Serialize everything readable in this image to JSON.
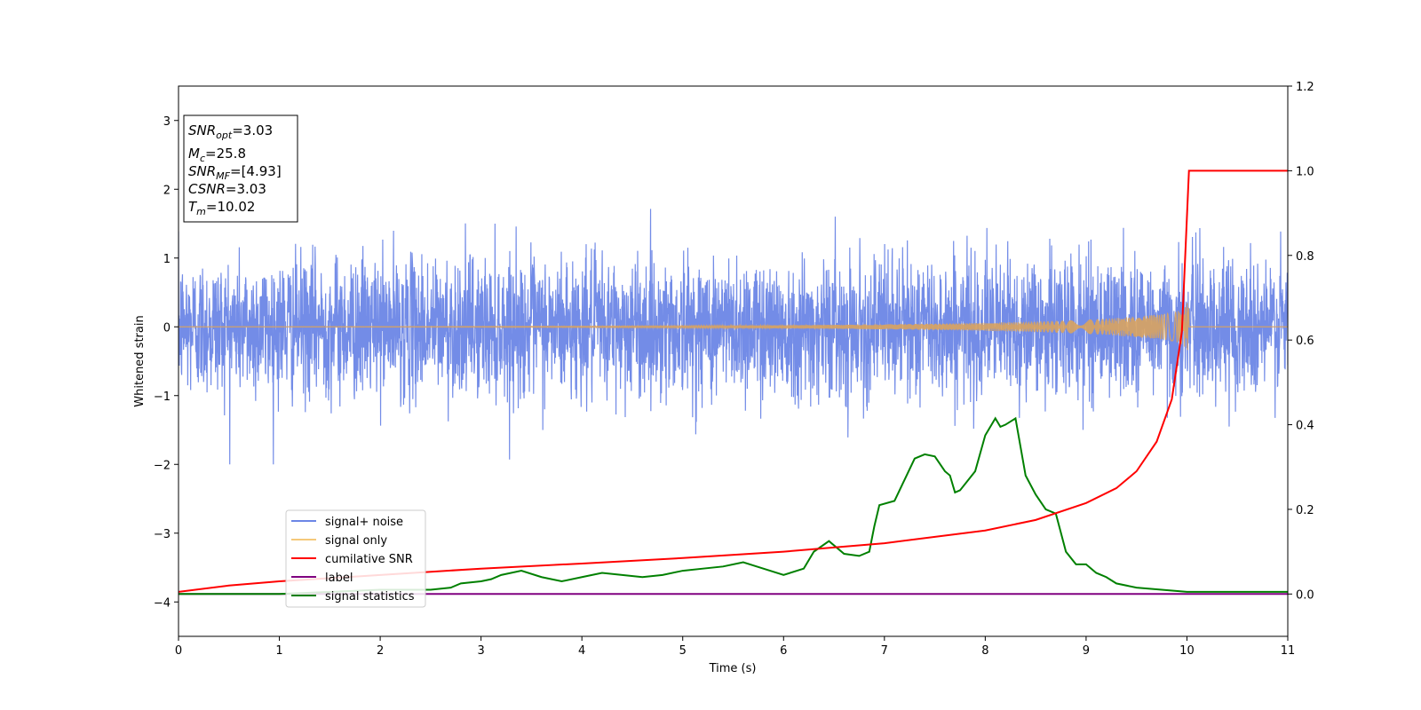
{
  "chart_data": {
    "type": "line",
    "xlabel": "Time (s)",
    "ylabel": "Whitened strain",
    "xlim": [
      0,
      11
    ],
    "ylim": [
      -4.5,
      3.5
    ],
    "y2lim": [
      -0.1,
      1.2
    ],
    "x_ticks": [
      "0",
      "1",
      "2",
      "3",
      "4",
      "5",
      "6",
      "7",
      "8",
      "9",
      "10",
      "11"
    ],
    "y_ticks": [
      "−4",
      "−3",
      "−2",
      "−1",
      "0",
      "1",
      "2",
      "3"
    ],
    "y2_ticks": [
      "0.0",
      "0.2",
      "0.4",
      "0.6",
      "0.8",
      "1.0",
      "1.2"
    ],
    "legend_position": "lower-left",
    "annotation": {
      "lines": [
        {
          "base": "SNR",
          "sub": "opt",
          "value": "=3.03"
        },
        {
          "base": "M",
          "sub": "c",
          "value": "=25.8"
        },
        {
          "base": "SNR",
          "sub": "MF",
          "value": "=[4.93]"
        },
        {
          "base": "CSNR",
          "sub": "",
          "value": "=3.03"
        },
        {
          "base": "T",
          "sub": "m",
          "value": "=10.02"
        }
      ]
    },
    "series": [
      {
        "name": "signal+ noise",
        "axis": "left",
        "color": "#6b86e6",
        "noise_profile": {
          "amplitude_std": 0.5,
          "typical_range": [
            -2.0,
            2.1
          ],
          "duration": 11
        }
      },
      {
        "name": "signal only",
        "axis": "left",
        "color": "#f5c97a",
        "chirp": {
          "merger_time": 10.02,
          "peak_amplitude": 0.35
        }
      },
      {
        "name": "cumilative SNR",
        "axis": "right",
        "color": "#ff0000",
        "x": [
          0,
          0.5,
          1,
          2,
          3,
          4,
          5,
          6,
          7,
          8,
          8.5,
          9,
          9.3,
          9.5,
          9.7,
          9.85,
          9.95,
          10.02,
          10.3,
          11
        ],
        "y": [
          0.005,
          0.02,
          0.03,
          0.045,
          0.06,
          0.072,
          0.085,
          0.1,
          0.12,
          0.15,
          0.175,
          0.215,
          0.25,
          0.29,
          0.36,
          0.46,
          0.62,
          1.0,
          1.0,
          1.0
        ]
      },
      {
        "name": "label",
        "axis": "right",
        "color": "#800080",
        "x": [
          0,
          11
        ],
        "y": [
          0.0,
          0.0
        ]
      },
      {
        "name": "signal statistics",
        "axis": "right",
        "color": "#008000",
        "x": [
          0,
          1,
          2,
          2.5,
          2.7,
          2.8,
          3.0,
          3.1,
          3.2,
          3.4,
          3.6,
          3.8,
          4.0,
          4.2,
          4.4,
          4.6,
          4.8,
          5.0,
          5.2,
          5.4,
          5.6,
          5.8,
          6.0,
          6.2,
          6.3,
          6.45,
          6.6,
          6.75,
          6.85,
          6.9,
          6.95,
          7.1,
          7.2,
          7.3,
          7.4,
          7.5,
          7.6,
          7.65,
          7.7,
          7.75,
          7.9,
          8.0,
          8.1,
          8.15,
          8.2,
          8.3,
          8.4,
          8.5,
          8.6,
          8.7,
          8.8,
          8.9,
          9.0,
          9.1,
          9.2,
          9.3,
          9.5,
          10.0,
          10.5,
          11.0
        ],
        "y": [
          0.0,
          0.0,
          0.01,
          0.01,
          0.015,
          0.025,
          0.03,
          0.035,
          0.045,
          0.055,
          0.04,
          0.03,
          0.04,
          0.05,
          0.045,
          0.04,
          0.045,
          0.055,
          0.06,
          0.065,
          0.075,
          0.06,
          0.045,
          0.06,
          0.1,
          0.125,
          0.095,
          0.09,
          0.1,
          0.16,
          0.21,
          0.22,
          0.27,
          0.32,
          0.33,
          0.325,
          0.29,
          0.28,
          0.24,
          0.245,
          0.29,
          0.375,
          0.415,
          0.395,
          0.4,
          0.415,
          0.28,
          0.235,
          0.2,
          0.19,
          0.1,
          0.07,
          0.07,
          0.05,
          0.04,
          0.025,
          0.015,
          0.005,
          0.005,
          0.005
        ]
      }
    ]
  }
}
